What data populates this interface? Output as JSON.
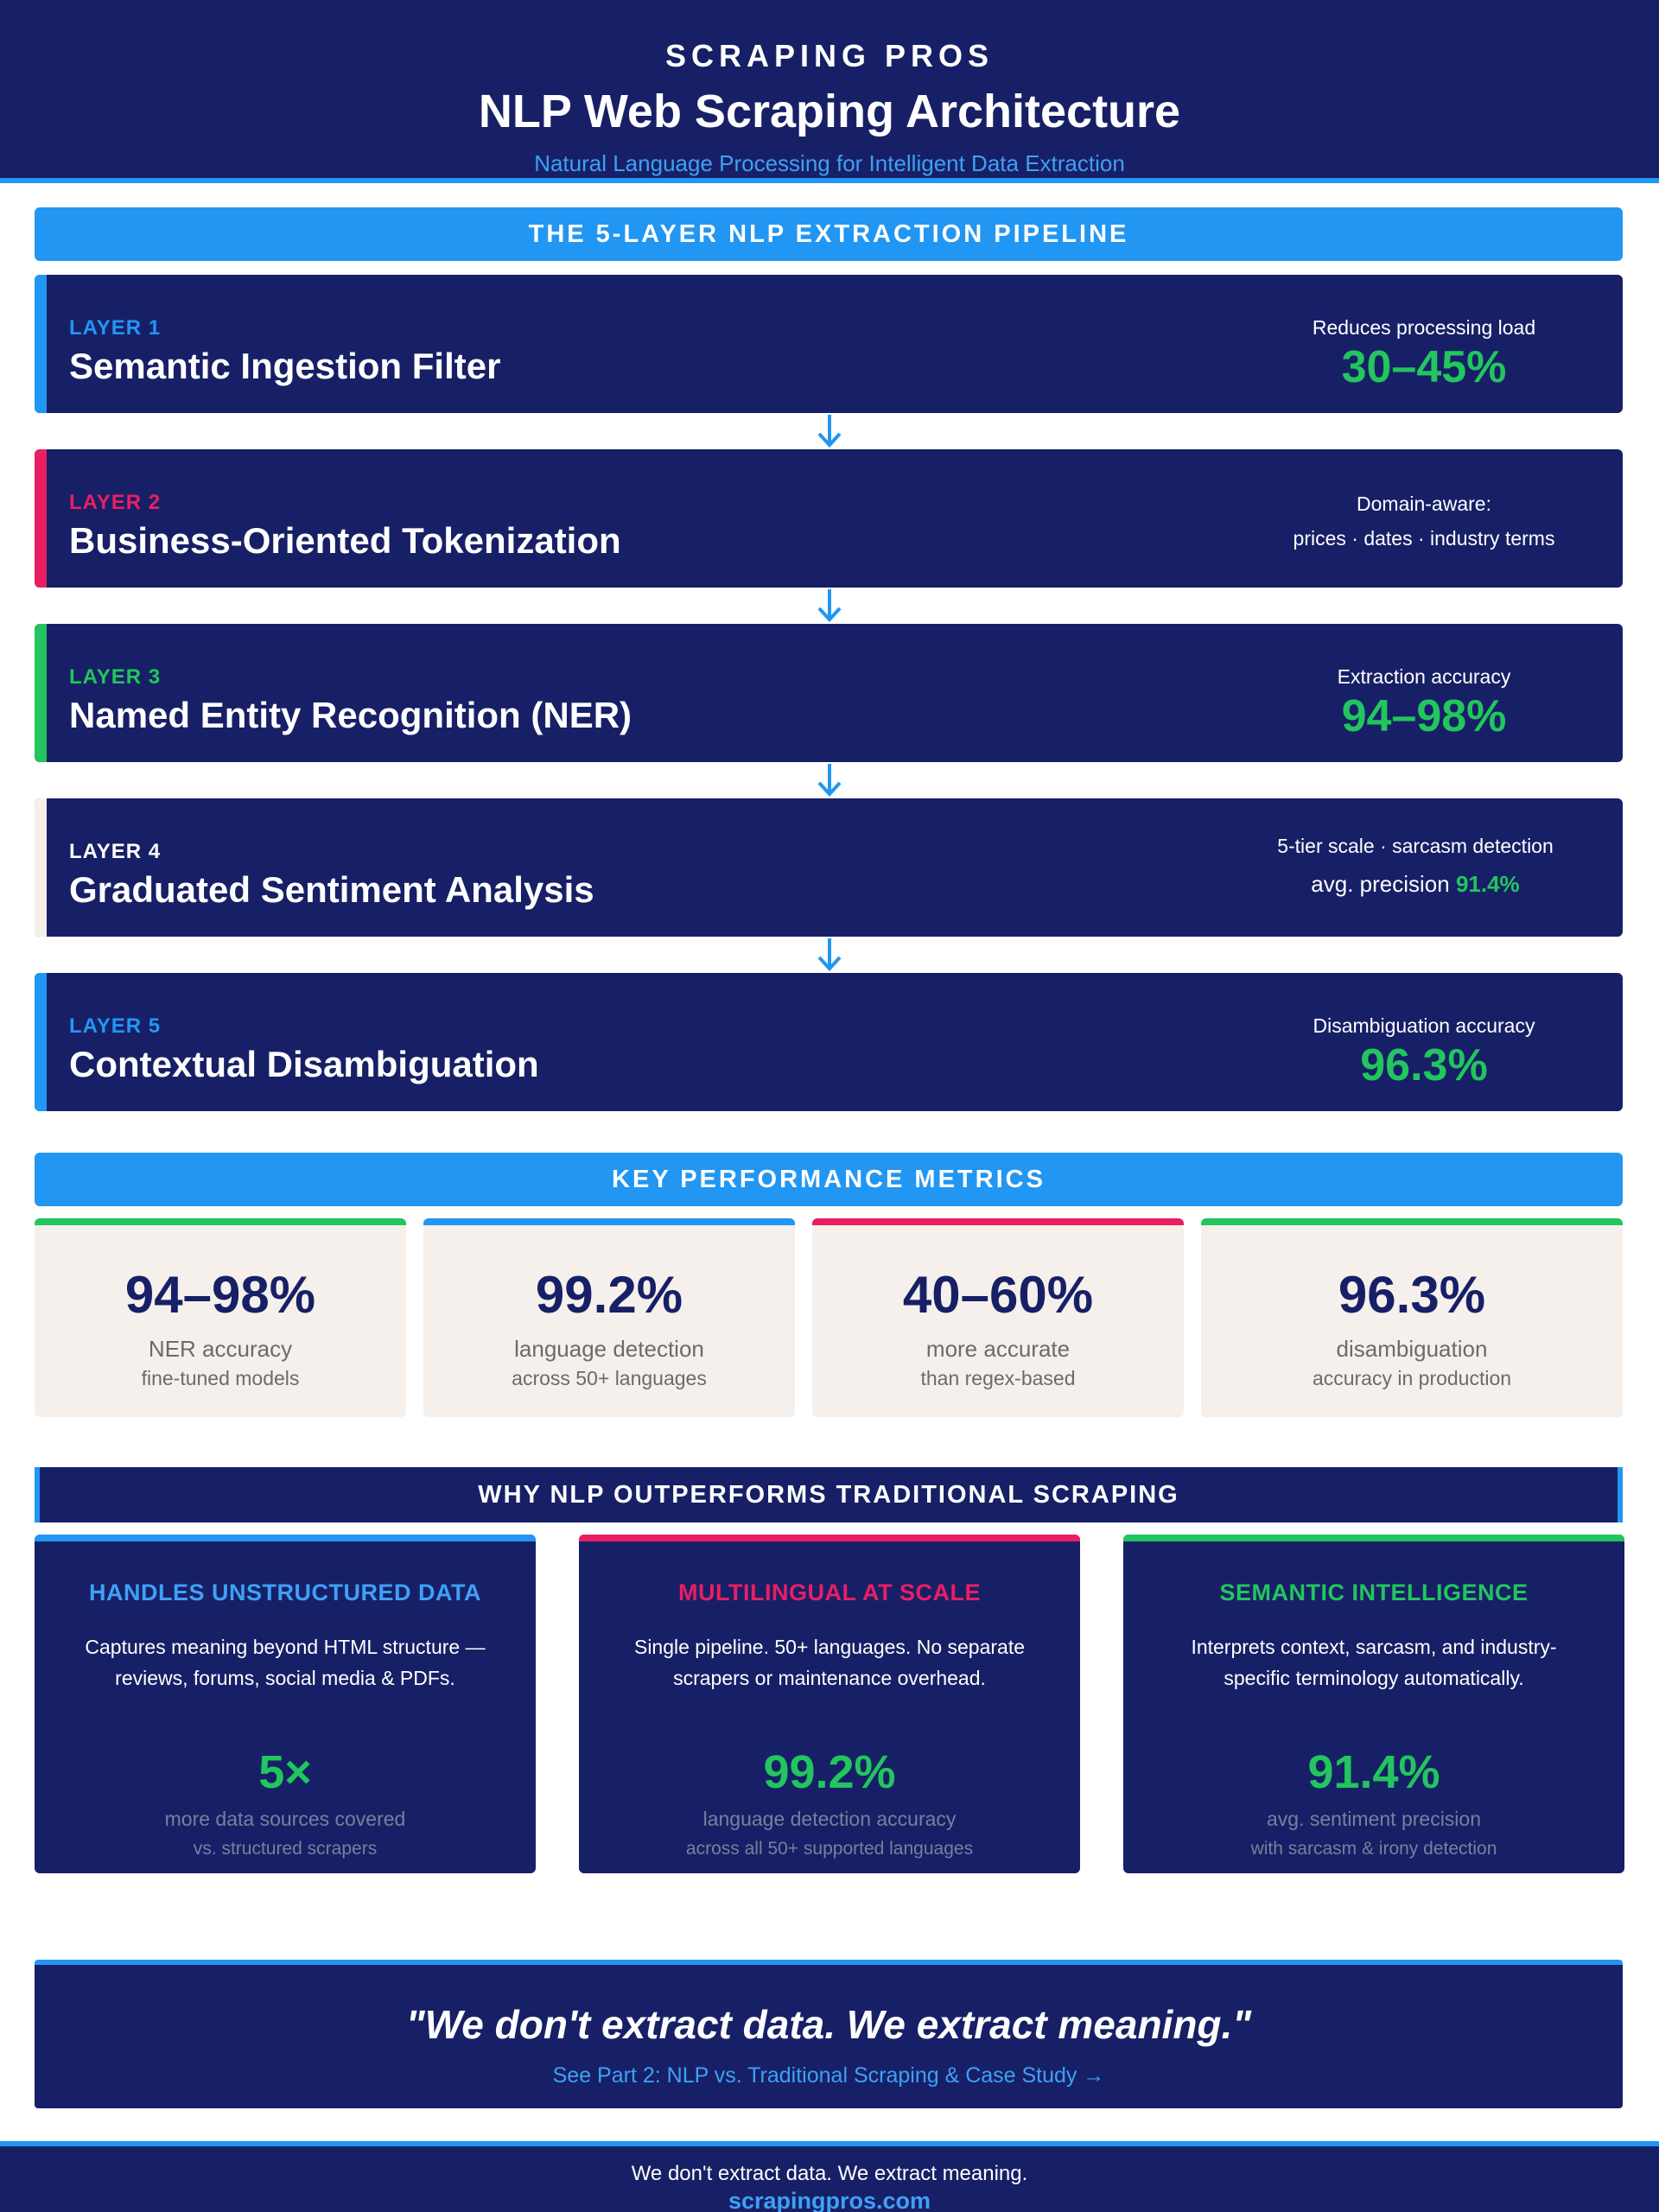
{
  "header": {
    "brand": "SCRAPING PROS",
    "title": "NLP Web Scraping Architecture",
    "subtitle": "Natural Language Processing for Intelligent Data Extraction"
  },
  "pipeline": {
    "heading": "THE 5-LAYER NLP EXTRACTION PIPELINE",
    "layers": [
      {
        "number": "LAYER 1",
        "name": "Semantic Ingestion Filter",
        "label": "Reduces processing load",
        "value": "30–45%",
        "accent": "#2196f3"
      },
      {
        "number": "LAYER 2",
        "name": "Business-Oriented Tokenization",
        "label": "Domain-aware:",
        "label2": "prices · dates · industry terms",
        "accent": "#e91e63"
      },
      {
        "number": "LAYER 3",
        "name": "Named Entity Recognition (NER)",
        "label": "Extraction accuracy",
        "value": "94–98%",
        "accent": "#22c55e"
      },
      {
        "number": "LAYER 4",
        "name": "Graduated Sentiment Analysis",
        "label": "5-tier scale · sarcasm detection",
        "precision_label": "avg. precision",
        "precision_value": "91.4%",
        "accent": "#f5f0eb"
      },
      {
        "number": "LAYER 5",
        "name": "Contextual Disambiguation",
        "label": "Disambiguation accuracy",
        "value": "96.3%",
        "accent": "#2196f3"
      }
    ]
  },
  "metrics": {
    "heading": "KEY PERFORMANCE METRICS",
    "items": [
      {
        "value": "94–98%",
        "label": "NER accuracy",
        "sub": "fine-tuned models",
        "color": "#22c55e"
      },
      {
        "value": "99.2%",
        "label": "language detection",
        "sub": "across 50+ languages",
        "color": "#2196f3"
      },
      {
        "value": "40–60%",
        "label": "more accurate",
        "sub": "than regex-based",
        "color": "#e91e63"
      },
      {
        "value": "96.3%",
        "label": "disambiguation",
        "sub": "accuracy in production",
        "color": "#22c55e"
      }
    ]
  },
  "why": {
    "heading": "WHY NLP OUTPERFORMS TRADITIONAL SCRAPING",
    "cards": [
      {
        "title": "HANDLES UNSTRUCTURED DATA",
        "desc": "Captures meaning beyond HTML structure — reviews, forums, social media & PDFs.",
        "value": "5×",
        "label": "more data sources covered",
        "sub": "vs. structured scrapers",
        "color": "#2196f3"
      },
      {
        "title": "MULTILINGUAL AT SCALE",
        "desc": "Single pipeline. 50+ languages. No separate scrapers or maintenance overhead.",
        "value": "99.2%",
        "label": "language detection accuracy",
        "sub": "across all 50+ supported languages",
        "color": "#e91e63"
      },
      {
        "title": "SEMANTIC INTELLIGENCE",
        "desc": "Interprets context, sarcasm, and industry-specific terminology automatically.",
        "value": "91.4%",
        "label": "avg. sentiment precision",
        "sub": "with sarcasm & irony detection",
        "color": "#22c55e"
      }
    ]
  },
  "quote": {
    "text": "\"We don't extract data. We extract meaning.\"",
    "link": "See Part 2: NLP vs. Traditional Scraping & Case Study →"
  },
  "footer": {
    "tagline": "We don't extract data. We extract meaning.",
    "url": "scrapingpros.com"
  }
}
